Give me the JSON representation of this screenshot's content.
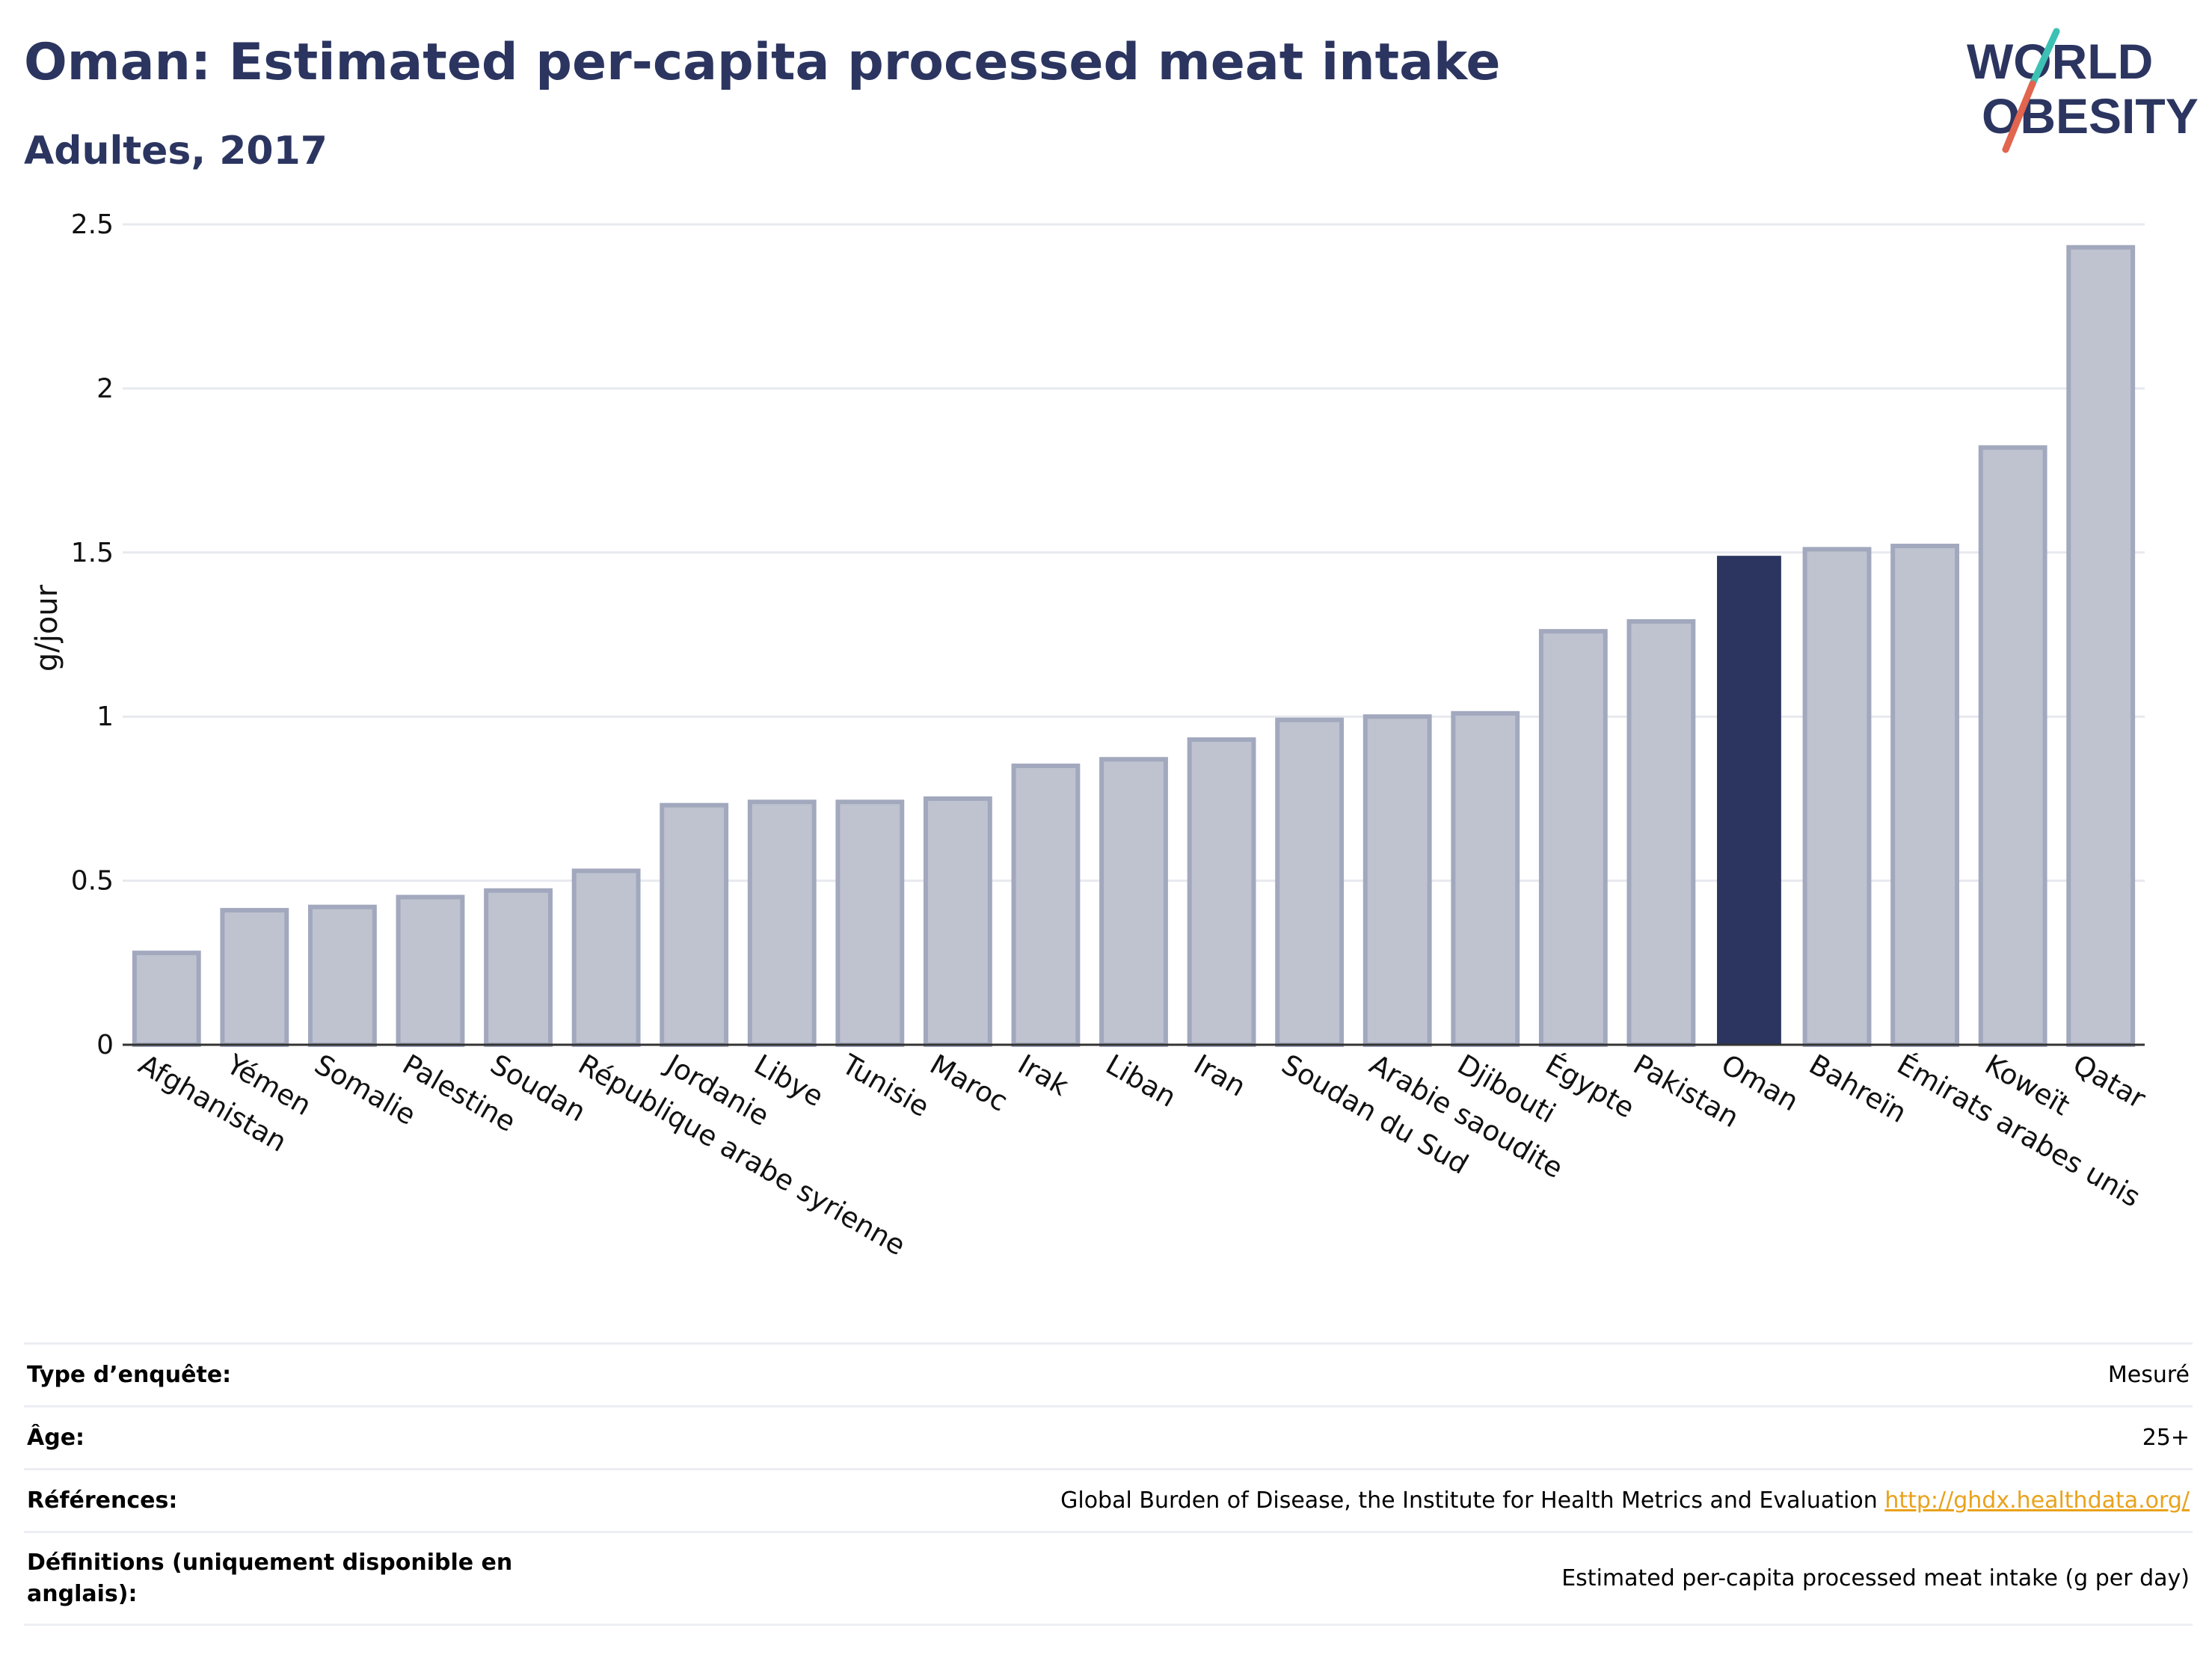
{
  "header": {
    "title": "Oman: Estimated per-capita processed meat intake",
    "subtitle": "Adultes, 2017"
  },
  "logo": {
    "line1": "WORLD",
    "line2": "OBESITY",
    "colors": {
      "navy": "#2b3560",
      "teal": "#3cc1b4",
      "coral": "#e2654f"
    }
  },
  "chart_data": {
    "type": "bar",
    "ylabel": "g/jour",
    "xlabel": "",
    "ylim": [
      0,
      2.5
    ],
    "yticks": [
      0,
      0.5,
      1,
      1.5,
      2,
      2.5
    ],
    "ytick_labels": [
      "0",
      "0.5",
      "1",
      "1.5",
      "2",
      "2.5"
    ],
    "grid": true,
    "highlight": "Oman",
    "colors": {
      "bar": "#bfc3d0",
      "bar_edge": "#a2a8bd",
      "highlight": "#2b3560",
      "grid": "#e7e9ef"
    },
    "categories": [
      "Afghanistan",
      "Yémen",
      "Somalie",
      "Palestine",
      "Soudan",
      "République arabe syrienne",
      "Jordanie",
      "Libye",
      "Tunisie",
      "Maroc",
      "Irak",
      "Liban",
      "Iran",
      "Soudan du Sud",
      "Arabie saoudite",
      "Djibouti",
      "Égypte",
      "Pakistan",
      "Oman",
      "Bahreïn",
      "Émirats arabes unis",
      "Koweït",
      "Qatar"
    ],
    "values": [
      0.28,
      0.41,
      0.42,
      0.45,
      0.47,
      0.53,
      0.73,
      0.74,
      0.74,
      0.75,
      0.85,
      0.87,
      0.93,
      0.99,
      1.0,
      1.01,
      1.26,
      1.29,
      1.49,
      1.51,
      1.52,
      1.82,
      2.43
    ]
  },
  "meta": {
    "rows": [
      {
        "key": "Type d’enquête:",
        "value": "Mesuré"
      },
      {
        "key": "Âge:",
        "value": "25+"
      },
      {
        "key": "Références:",
        "value": "Global Burden of Disease, the Institute for Health Metrics and Evaluation",
        "link": "http://ghdx.healthdata.org/"
      },
      {
        "key": "Définitions (uniquement disponible en anglais):",
        "value": "Estimated per-capita processed meat intake (g per day)"
      }
    ]
  }
}
